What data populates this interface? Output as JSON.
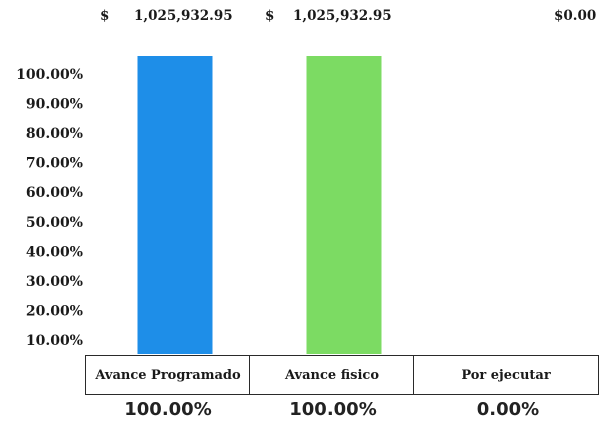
{
  "amounts": {
    "programado_sign": "$",
    "programado": "1,025,932.95",
    "fisico_sign": "$",
    "fisico": "1,025,932.95",
    "por_ejecutar": "$0.00"
  },
  "chart_data": {
    "type": "bar",
    "categories": [
      "Avance Programado",
      "Avance fisico",
      "Por ejecutar"
    ],
    "values": [
      100.0,
      100.0,
      0.0
    ],
    "value_labels": [
      "100.00%",
      "100.00%",
      "0.00%"
    ],
    "y_ticks": [
      "10.00%",
      "20.00%",
      "30.00%",
      "40.00%",
      "50.00%",
      "60.00%",
      "70.00%",
      "80.00%",
      "90.00%",
      "100.00%"
    ],
    "ylim": [
      10,
      100
    ],
    "colors": [
      "#1e8ee8",
      "#7cdb63",
      "#7cdb63"
    ],
    "grid": false,
    "legend": "none"
  }
}
